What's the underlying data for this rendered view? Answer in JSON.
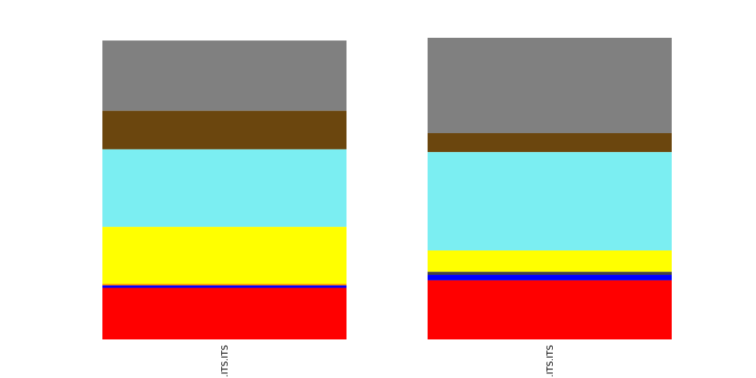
{
  "chart_data": [
    {
      "type": "bar",
      "stacked": true,
      "normalized": true,
      "categories": [
        "...ITS.ITS"
      ],
      "ylim": [
        0,
        1
      ],
      "grid": false,
      "axes_visible": false,
      "series": [
        {
          "color": "#ff0000",
          "values": [
            0.171
          ]
        },
        {
          "color": "#0000ff",
          "values": [
            0.008
          ]
        },
        {
          "color": "#ff8c00",
          "values": [
            0.005
          ]
        },
        {
          "color": "#ffff00",
          "values": [
            0.189
          ]
        },
        {
          "color": "#7beef2",
          "values": [
            0.257
          ]
        },
        {
          "color": "#6b460e",
          "values": [
            0.128
          ]
        },
        {
          "color": "#808080",
          "values": [
            0.233
          ]
        }
      ]
    },
    {
      "type": "bar",
      "stacked": true,
      "normalized": true,
      "categories": [
        "...ITS.ITS"
      ],
      "ylim": [
        0,
        1
      ],
      "grid": false,
      "axes_visible": false,
      "series": [
        {
          "color": "#ff0000",
          "values": [
            0.196
          ]
        },
        {
          "color": "#0000ff",
          "values": [
            0.018
          ]
        },
        {
          "color": "#444444",
          "values": [
            0.01
          ]
        },
        {
          "color": "#ffff00",
          "values": [
            0.071
          ]
        },
        {
          "color": "#7beef2",
          "values": [
            0.326
          ]
        },
        {
          "color": "#6b460e",
          "values": [
            0.063
          ]
        },
        {
          "color": "#808080",
          "values": [
            0.316
          ]
        }
      ]
    }
  ]
}
